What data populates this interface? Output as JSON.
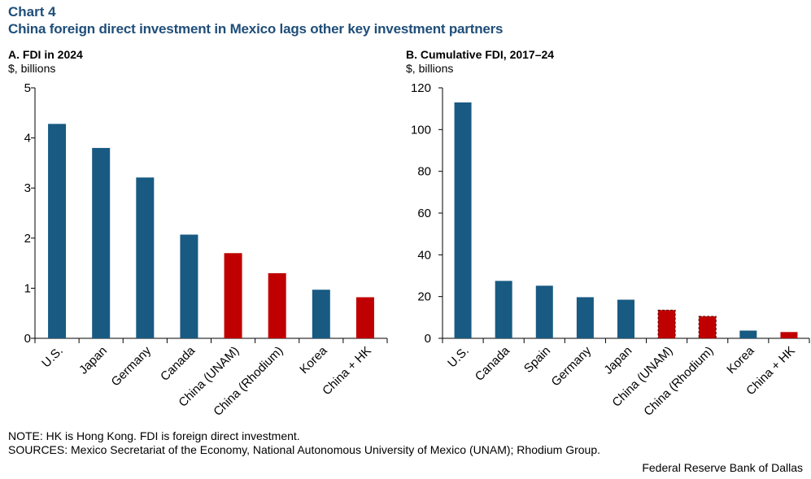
{
  "header": {
    "label": "Chart 4",
    "title": "China foreign direct investment in Mexico lags other key investment partners"
  },
  "footer": {
    "note": "NOTE: HK is Hong Kong. FDI is foreign direct investment.",
    "sources": "SOURCES: Mexico Secretariat of the Economy, National Autonomous University of Mexico (UNAM); Rhodium Group.",
    "credit": "Federal Reserve Bank of Dallas"
  },
  "colors": {
    "primary": "#185a82",
    "highlight": "#c00000",
    "title": "#1f4e79"
  },
  "chart_data": [
    {
      "type": "bar",
      "title": "A. FDI in 2024",
      "ylabel": "$, billions",
      "xlabel": "",
      "categories": [
        "U.S.",
        "Japan",
        "Germany",
        "Canada",
        "China (UNAM)",
        "China (Rhodium)",
        "Korea",
        "China + HK"
      ],
      "values": [
        4.28,
        3.8,
        3.21,
        2.07,
        1.7,
        1.3,
        0.97,
        0.82
      ],
      "highlighted": [
        false,
        false,
        false,
        false,
        true,
        true,
        false,
        true
      ],
      "ylim": [
        0,
        5
      ],
      "yticks": [
        0,
        1,
        2,
        3,
        4,
        5
      ],
      "grid": false,
      "legend": "none"
    },
    {
      "type": "bar",
      "title": "B. Cumulative FDI, 2017–24",
      "ylabel": "$, billions",
      "xlabel": "",
      "categories": [
        "U.S.",
        "Canada",
        "Spain",
        "Germany",
        "Japan",
        "China (UNAM)",
        "China (Rhodium)",
        "Korea",
        "China + HK"
      ],
      "values": [
        113,
        27.5,
        25.2,
        19.7,
        18.5,
        13.5,
        10.5,
        3.7,
        3.0
      ],
      "highlighted": [
        false,
        false,
        false,
        false,
        false,
        true,
        true,
        false,
        true
      ],
      "ylim": [
        0,
        120
      ],
      "yticks": [
        0,
        20,
        40,
        60,
        80,
        100,
        120
      ],
      "grid": false,
      "legend": "none"
    }
  ]
}
